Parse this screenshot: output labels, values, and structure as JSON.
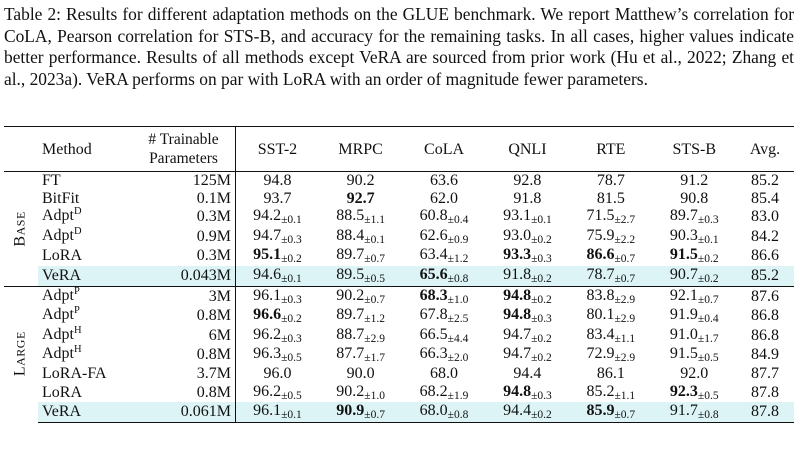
{
  "caption": "Table 2: Results for different adaptation methods on the GLUE benchmark. We report Matthew’s correlation for CoLA, Pearson correlation for STS-B, and accuracy for the remaining tasks. In all cases, higher values indicate better performance. Results of all methods except VeRA are sourced from prior work (Hu et al., 2022; Zhang et al., 2023a). VeRA performs on par with LoRA with an order of magnitude fewer parameters.",
  "columns": [
    "Method",
    "# Trainable\nParameters",
    "SST-2",
    "MRPC",
    "CoLA",
    "QNLI",
    "RTE",
    "STS-B",
    "Avg."
  ],
  "groups": [
    {
      "label_first": "B",
      "label_rest": "ASE",
      "rows": [
        {
          "method": "FT",
          "sup": "",
          "params": "125M",
          "scores": [
            {
              "v": "94.8",
              "s": ""
            },
            {
              "v": "90.2",
              "s": ""
            },
            {
              "v": "63.6",
              "s": ""
            },
            {
              "v": "92.8",
              "s": ""
            },
            {
              "v": "78.7",
              "s": ""
            },
            {
              "v": "91.2",
              "s": ""
            }
          ],
          "avg": "85.2"
        },
        {
          "method": "BitFit",
          "sup": "",
          "params": "0.1M",
          "scores": [
            {
              "v": "93.7",
              "s": ""
            },
            {
              "v": "92.7",
              "s": "",
              "b": true
            },
            {
              "v": "62.0",
              "s": ""
            },
            {
              "v": "91.8",
              "s": ""
            },
            {
              "v": "81.5",
              "s": ""
            },
            {
              "v": "90.8",
              "s": ""
            }
          ],
          "avg": "85.4"
        },
        {
          "method": "Adpt",
          "sup": "D",
          "params": "0.3M",
          "scores": [
            {
              "v": "94.2",
              "s": "±0.1"
            },
            {
              "v": "88.5",
              "s": "±1.1"
            },
            {
              "v": "60.8",
              "s": "±0.4"
            },
            {
              "v": "93.1",
              "s": "±0.1"
            },
            {
              "v": "71.5",
              "s": "±2.7"
            },
            {
              "v": "89.7",
              "s": "±0.3"
            }
          ],
          "avg": "83.0"
        },
        {
          "method": "Adpt",
          "sup": "D",
          "params": "0.9M",
          "scores": [
            {
              "v": "94.7",
              "s": "±0.3"
            },
            {
              "v": "88.4",
              "s": "±0.1"
            },
            {
              "v": "62.6",
              "s": "±0.9"
            },
            {
              "v": "93.0",
              "s": "±0.2"
            },
            {
              "v": "75.9",
              "s": "±2.2"
            },
            {
              "v": "90.3",
              "s": "±0.1"
            }
          ],
          "avg": "84.2"
        },
        {
          "method": "LoRA",
          "sup": "",
          "params": "0.3M",
          "scores": [
            {
              "v": "95.1",
              "s": "±0.2",
              "b": true
            },
            {
              "v": "89.7",
              "s": "±0.7"
            },
            {
              "v": "63.4",
              "s": "±1.2"
            },
            {
              "v": "93.3",
              "s": "±0.3",
              "b": true
            },
            {
              "v": "86.6",
              "s": "±0.7",
              "b": true
            },
            {
              "v": "91.5",
              "s": "±0.2",
              "b": true
            }
          ],
          "avg": "86.6",
          "avg_b": true
        },
        {
          "method": "VeRA",
          "sup": "",
          "params": "0.043M",
          "params_b": true,
          "hl": true,
          "scores": [
            {
              "v": "94.6",
              "s": "±0.1"
            },
            {
              "v": "89.5",
              "s": "±0.5"
            },
            {
              "v": "65.6",
              "s": "±0.8",
              "b": true
            },
            {
              "v": "91.8",
              "s": "±0.2"
            },
            {
              "v": "78.7",
              "s": "±0.7"
            },
            {
              "v": "90.7",
              "s": "±0.2"
            }
          ],
          "avg": "85.2"
        }
      ]
    },
    {
      "label_first": "L",
      "label_rest": "ARGE",
      "rows": [
        {
          "method": "Adpt",
          "sup": "P",
          "params": "3M",
          "scores": [
            {
              "v": "96.1",
              "s": "±0.3"
            },
            {
              "v": "90.2",
              "s": "±0.7"
            },
            {
              "v": "68.3",
              "s": "±1.0",
              "b": true
            },
            {
              "v": "94.8",
              "s": "±0.2",
              "b": true
            },
            {
              "v": "83.8",
              "s": "±2.9"
            },
            {
              "v": "92.1",
              "s": "±0.7"
            }
          ],
          "avg": "87.6"
        },
        {
          "method": "Adpt",
          "sup": "P",
          "params": "0.8M",
          "scores": [
            {
              "v": "96.6",
              "s": "±0.2",
              "b": true
            },
            {
              "v": "89.7",
              "s": "±1.2"
            },
            {
              "v": "67.8",
              "s": "±2.5"
            },
            {
              "v": "94.8",
              "s": "±0.3",
              "b": true
            },
            {
              "v": "80.1",
              "s": "±2.9"
            },
            {
              "v": "91.9",
              "s": "±0.4"
            }
          ],
          "avg": "86.8"
        },
        {
          "method": "Adpt",
          "sup": "H",
          "params": "6M",
          "scores": [
            {
              "v": "96.2",
              "s": "±0.3"
            },
            {
              "v": "88.7",
              "s": "±2.9"
            },
            {
              "v": "66.5",
              "s": "±4.4"
            },
            {
              "v": "94.7",
              "s": "±0.2"
            },
            {
              "v": "83.4",
              "s": "±1.1"
            },
            {
              "v": "91.0",
              "s": "±1.7"
            }
          ],
          "avg": "86.8"
        },
        {
          "method": "Adpt",
          "sup": "H",
          "params": "0.8M",
          "scores": [
            {
              "v": "96.3",
              "s": "±0.5"
            },
            {
              "v": "87.7",
              "s": "±1.7"
            },
            {
              "v": "66.3",
              "s": "±2.0"
            },
            {
              "v": "94.7",
              "s": "±0.2"
            },
            {
              "v": "72.9",
              "s": "±2.9"
            },
            {
              "v": "91.5",
              "s": "±0.5"
            }
          ],
          "avg": "84.9"
        },
        {
          "method": "LoRA-FA",
          "sup": "",
          "params": "3.7M",
          "scores": [
            {
              "v": "96.0",
              "s": ""
            },
            {
              "v": "90.0",
              "s": ""
            },
            {
              "v": "68.0",
              "s": ""
            },
            {
              "v": "94.4",
              "s": ""
            },
            {
              "v": "86.1",
              "s": ""
            },
            {
              "v": "92.0",
              "s": ""
            }
          ],
          "avg": "87.7"
        },
        {
          "method": "LoRA",
          "sup": "",
          "params": "0.8M",
          "scores": [
            {
              "v": "96.2",
              "s": "±0.5"
            },
            {
              "v": "90.2",
              "s": "±1.0"
            },
            {
              "v": "68.2",
              "s": "±1.9"
            },
            {
              "v": "94.8",
              "s": "±0.3",
              "b": true
            },
            {
              "v": "85.2",
              "s": "±1.1"
            },
            {
              "v": "92.3",
              "s": "±0.5",
              "b": true
            }
          ],
          "avg": "87.8",
          "avg_b": true
        },
        {
          "method": "VeRA",
          "sup": "",
          "params": "0.061M",
          "params_b": true,
          "hl": true,
          "scores": [
            {
              "v": "96.1",
              "s": "±0.1"
            },
            {
              "v": "90.9",
              "s": "±0.7",
              "b": true
            },
            {
              "v": "68.0",
              "s": "±0.8"
            },
            {
              "v": "94.4",
              "s": "±0.2"
            },
            {
              "v": "85.9",
              "s": "±0.7",
              "b": true
            },
            {
              "v": "91.7",
              "s": "±0.8"
            }
          ],
          "avg": "87.8",
          "avg_b": true
        }
      ]
    }
  ]
}
